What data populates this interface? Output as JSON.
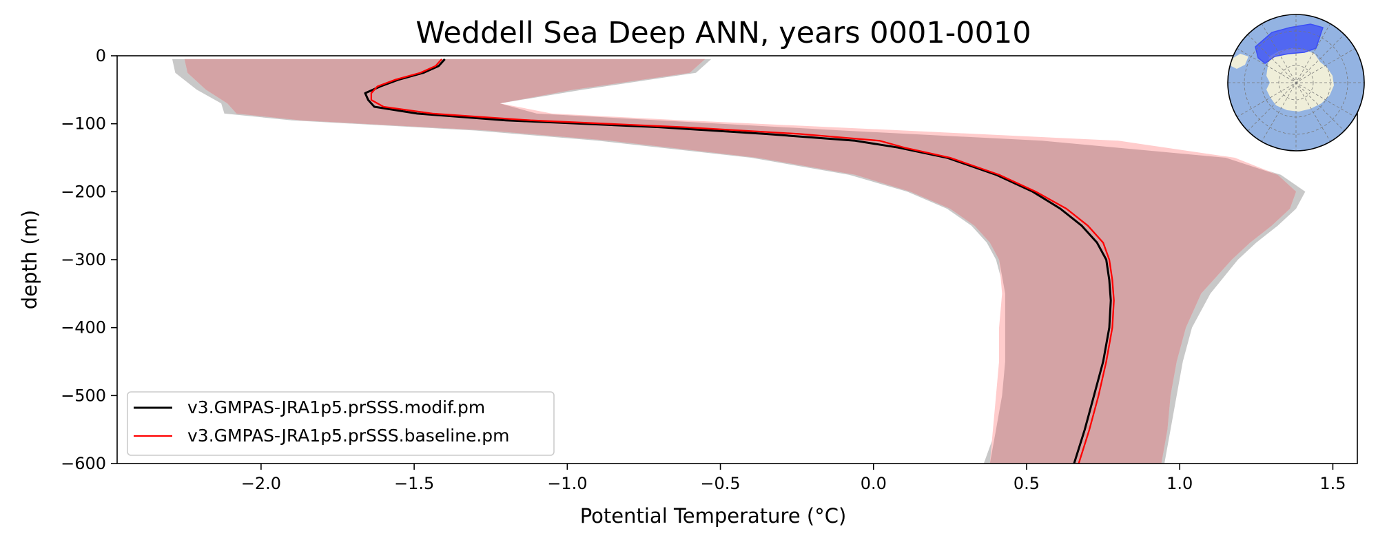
{
  "chart_data": {
    "type": "line",
    "title": "Weddell Sea Deep ANN, years 0001-0010",
    "xlabel": "Potential Temperature (°C)",
    "ylabel": "depth (m)",
    "xlim": [
      -2.47,
      1.58
    ],
    "ylim": [
      -600,
      0
    ],
    "xticks": [
      -2.0,
      -1.5,
      -1.0,
      -0.5,
      0.0,
      0.5,
      1.0,
      1.5
    ],
    "xtick_labels": [
      "−2.0",
      "−1.5",
      "−1.0",
      "−0.5",
      "0.0",
      "0.5",
      "1.0",
      "1.5"
    ],
    "yticks": [
      0,
      -100,
      -200,
      -300,
      -400,
      -500,
      -600
    ],
    "ytick_labels": [
      "0",
      "−100",
      "−200",
      "−300",
      "−400",
      "−500",
      "−600"
    ],
    "legend_position": "lower-left",
    "series": [
      {
        "name": "v3.GMPAS-JRA1p5.prSSS.modif.pm",
        "color": "#000000",
        "depth": [
          -5,
          -15,
          -25,
          -35,
          -45,
          -55,
          -65,
          -75,
          -85,
          -95,
          -105,
          -115,
          -125,
          -135,
          -150,
          -175,
          -200,
          -225,
          -250,
          -275,
          -300,
          -330,
          -360,
          -400,
          -450,
          -500,
          -550,
          -600
        ],
        "values": [
          -1.4,
          -1.42,
          -1.47,
          -1.55,
          -1.61,
          -1.66,
          -1.65,
          -1.63,
          -1.49,
          -1.2,
          -0.7,
          -0.35,
          -0.06,
          0.08,
          0.24,
          0.4,
          0.52,
          0.61,
          0.68,
          0.73,
          0.76,
          0.77,
          0.775,
          0.77,
          0.75,
          0.72,
          0.69,
          0.655
        ]
      },
      {
        "name": "v3.GMPAS-JRA1p5.prSSS.baseline.pm",
        "color": "#ff0000",
        "depth": [
          -5,
          -15,
          -25,
          -35,
          -45,
          -55,
          -65,
          -75,
          -85,
          -95,
          -105,
          -115,
          -125,
          -135,
          -150,
          -175,
          -200,
          -225,
          -250,
          -275,
          -300,
          -330,
          -360,
          -400,
          -450,
          -500,
          -550,
          -600
        ],
        "values": [
          -1.41,
          -1.43,
          -1.48,
          -1.56,
          -1.62,
          -1.64,
          -1.64,
          -1.6,
          -1.44,
          -1.12,
          -0.62,
          -0.24,
          0.02,
          0.1,
          0.25,
          0.41,
          0.53,
          0.63,
          0.7,
          0.75,
          0.77,
          0.78,
          0.785,
          0.78,
          0.76,
          0.735,
          0.705,
          0.67
        ]
      }
    ],
    "bands": [
      {
        "name": "modif spread",
        "color": "#c8c8c8",
        "depth": [
          -5,
          -25,
          -50,
          -70,
          -85,
          -95,
          -110,
          -125,
          -150,
          -175,
          -200,
          -225,
          -250,
          -275,
          -300,
          -350,
          -400,
          -450,
          -500,
          -550,
          -600
        ],
        "lower": [
          -2.29,
          -2.28,
          -2.21,
          -2.13,
          -2.12,
          -1.9,
          -1.3,
          -0.9,
          -0.4,
          -0.08,
          0.11,
          0.24,
          0.32,
          0.37,
          0.4,
          0.43,
          0.43,
          0.43,
          0.42,
          0.4,
          0.36
        ],
        "upper": [
          -0.53,
          -0.58,
          -0.95,
          -1.22,
          -1.1,
          -0.7,
          -0.1,
          0.55,
          1.15,
          1.33,
          1.41,
          1.38,
          1.32,
          1.25,
          1.19,
          1.1,
          1.04,
          1.01,
          0.99,
          0.97,
          0.95
        ]
      },
      {
        "name": "baseline spread",
        "color": "#ffcccc",
        "depth": [
          -5,
          -25,
          -50,
          -70,
          -85,
          -95,
          -110,
          -125,
          -150,
          -175,
          -200,
          -225,
          -250,
          -275,
          -300,
          -350,
          -400,
          -450,
          -500,
          -550,
          -600
        ],
        "lower": [
          -2.25,
          -2.24,
          -2.18,
          -2.11,
          -2.08,
          -1.87,
          -1.26,
          -0.86,
          -0.38,
          -0.06,
          0.12,
          0.25,
          0.33,
          0.38,
          0.41,
          0.42,
          0.41,
          0.41,
          0.4,
          0.39,
          0.38
        ],
        "upper": [
          -0.55,
          -0.6,
          -0.98,
          -1.22,
          -1.05,
          -0.62,
          0.1,
          0.8,
          1.18,
          1.32,
          1.38,
          1.36,
          1.3,
          1.23,
          1.17,
          1.07,
          1.02,
          0.99,
          0.97,
          0.96,
          0.94
        ]
      }
    ]
  },
  "inset_map": {
    "ocean_color": "#93b3e2",
    "land_color": "#efeed9",
    "region_color": "#3b4ef5"
  }
}
